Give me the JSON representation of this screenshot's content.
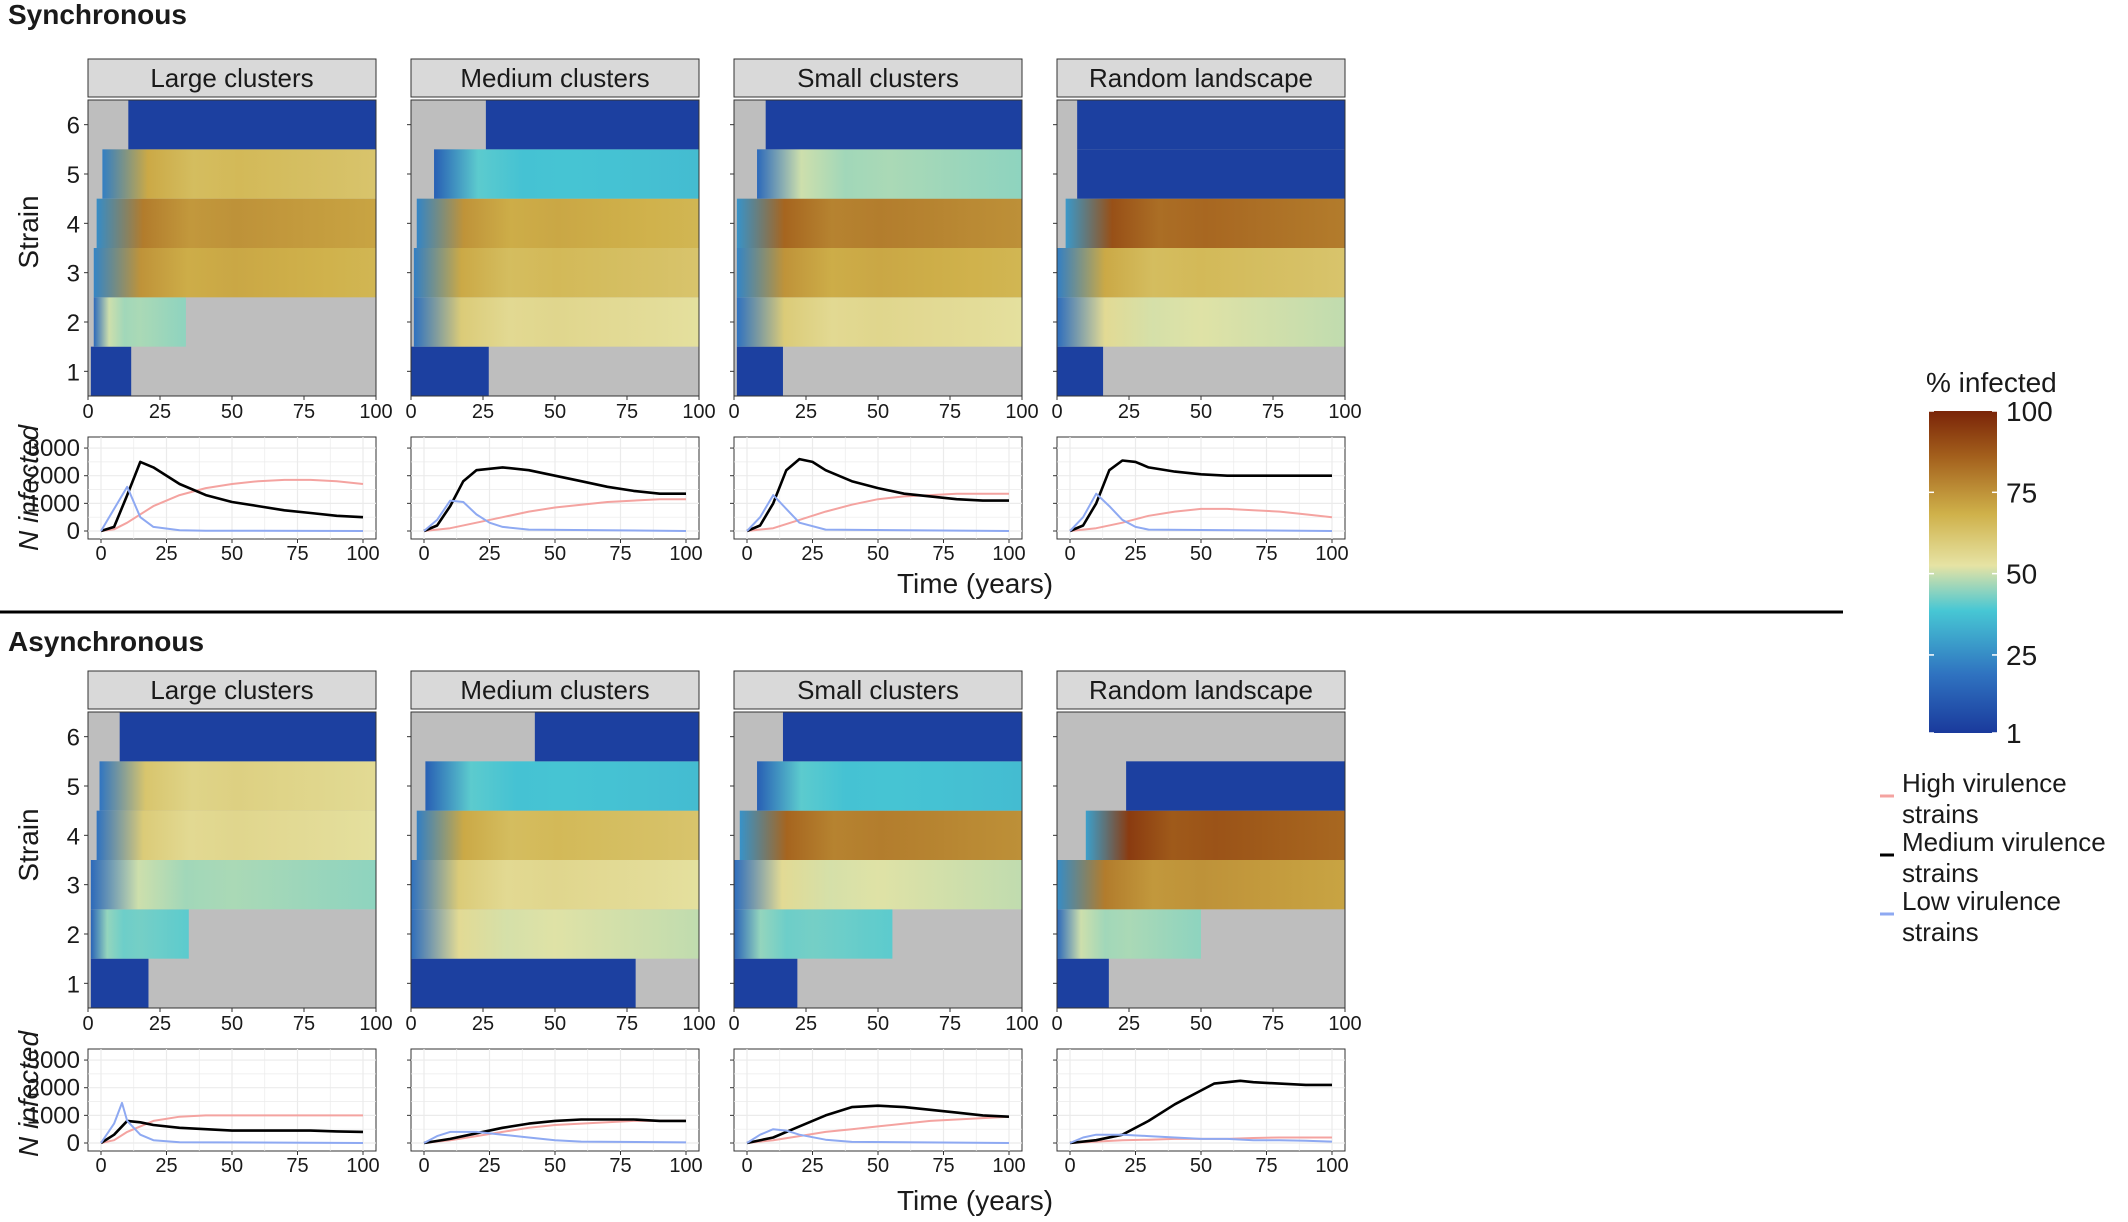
{
  "sections": [
    {
      "title": "Synchronous",
      "heatmap_facets": [
        "Large clusters",
        "Medium clusters",
        "Small clusters",
        "Random landscape"
      ]
    },
    {
      "title": "Asynchronous",
      "heatmap_facets": [
        "Large clusters",
        "Medium clusters",
        "Small clusters",
        "Random landscape"
      ]
    }
  ],
  "axes": {
    "heatmap_y_label": "Strain",
    "line_y_label": "N infected",
    "x_label": "Time (years)",
    "heatmap_y_ticks": [
      "1",
      "2",
      "3",
      "4",
      "5",
      "6"
    ],
    "heatmap_x_ticks": [
      "0",
      "25",
      "50",
      "75",
      "100"
    ],
    "line_x_ticks": [
      "0",
      "25",
      "50",
      "75",
      "100"
    ],
    "line_y_ticks": [
      "0",
      "1000",
      "2000",
      "3000"
    ]
  },
  "colorbar": {
    "title": "% infected",
    "ticks": [
      "1",
      "25",
      "50",
      "75",
      "100"
    ],
    "stops": [
      "#1a3a9c",
      "#2f72c0",
      "#47c7d4",
      "#e6e3a4",
      "#cfb14a",
      "#a35f1c",
      "#7a2408"
    ]
  },
  "legend": [
    {
      "label_line1": "High virulence",
      "label_line2": "strains",
      "color": "#f4a3a0"
    },
    {
      "label_line1": "Medium virulence",
      "label_line2": "strains",
      "color": "#000000"
    },
    {
      "label_line1": "Low virulence",
      "label_line2": "strains",
      "color": "#8ea9f2"
    }
  ],
  "chart_data": [
    {
      "section": "Synchronous",
      "facet": "Large clusters",
      "type": "heatmap+line",
      "strain_start_years": {
        "1": 1,
        "2": 2,
        "3": 2,
        "4": 3,
        "5": 5,
        "6": 14
      },
      "strain_end_years": {
        "1": 15,
        "2": 34,
        "3": 100,
        "4": 100,
        "5": 100,
        "6": 100
      },
      "strain_peak_pct": {
        "1": 5,
        "2": 50,
        "3": 75,
        "4": 80,
        "5": 70,
        "6": 2
      },
      "series": [
        {
          "name": "High virulence strains",
          "x": [
            0,
            5,
            10,
            20,
            30,
            40,
            50,
            60,
            70,
            80,
            90,
            100
          ],
          "y": [
            0,
            60,
            300,
            900,
            1300,
            1550,
            1700,
            1800,
            1850,
            1850,
            1800,
            1700
          ]
        },
        {
          "name": "Medium virulence strains",
          "x": [
            0,
            5,
            10,
            15,
            20,
            30,
            40,
            50,
            60,
            70,
            80,
            90,
            100
          ],
          "y": [
            0,
            150,
            1300,
            2500,
            2300,
            1700,
            1300,
            1050,
            900,
            750,
            650,
            550,
            500
          ]
        },
        {
          "name": "Low virulence strains",
          "x": [
            0,
            5,
            10,
            15,
            20,
            30,
            40,
            100
          ],
          "y": [
            0,
            800,
            1600,
            500,
            150,
            30,
            10,
            0
          ]
        }
      ]
    },
    {
      "section": "Synchronous",
      "facet": "Medium clusters",
      "type": "heatmap+line",
      "strain_start_years": {
        "1": 0,
        "2": 1,
        "3": 1,
        "4": 2,
        "5": 8,
        "6": 26
      },
      "strain_end_years": {
        "1": 27,
        "2": 100,
        "3": 100,
        "4": 100,
        "5": 100,
        "6": 100
      },
      "strain_peak_pct": {
        "1": 3,
        "2": 60,
        "3": 70,
        "4": 75,
        "5": 40,
        "6": 2
      },
      "series": [
        {
          "name": "High virulence strains",
          "x": [
            0,
            10,
            20,
            30,
            40,
            50,
            60,
            70,
            80,
            90,
            100
          ],
          "y": [
            0,
            100,
            300,
            500,
            700,
            850,
            950,
            1050,
            1100,
            1150,
            1150
          ]
        },
        {
          "name": "Medium virulence strains",
          "x": [
            0,
            5,
            10,
            15,
            20,
            30,
            40,
            50,
            60,
            70,
            80,
            90,
            100
          ],
          "y": [
            0,
            200,
            900,
            1800,
            2200,
            2300,
            2200,
            2000,
            1800,
            1600,
            1450,
            1350,
            1350
          ]
        },
        {
          "name": "Low virulence strains",
          "x": [
            0,
            5,
            10,
            15,
            20,
            25,
            30,
            40,
            100
          ],
          "y": [
            0,
            400,
            1100,
            1050,
            600,
            300,
            150,
            50,
            0
          ]
        }
      ]
    },
    {
      "section": "Synchronous",
      "facet": "Small clusters",
      "type": "heatmap+line",
      "strain_start_years": {
        "1": 1,
        "2": 1,
        "3": 1,
        "4": 1,
        "5": 8,
        "6": 11
      },
      "strain_end_years": {
        "1": 17,
        "2": 100,
        "3": 100,
        "4": 100,
        "5": 100,
        "6": 100
      },
      "strain_peak_pct": {
        "1": 3,
        "2": 60,
        "3": 75,
        "4": 85,
        "5": 50,
        "6": 2
      },
      "series": [
        {
          "name": "High virulence strains",
          "x": [
            0,
            10,
            20,
            30,
            40,
            50,
            60,
            70,
            80,
            90,
            100
          ],
          "y": [
            0,
            100,
            400,
            700,
            950,
            1150,
            1250,
            1300,
            1350,
            1350,
            1350
          ]
        },
        {
          "name": "Medium virulence strains",
          "x": [
            0,
            5,
            10,
            15,
            20,
            25,
            30,
            40,
            50,
            60,
            70,
            80,
            90,
            100
          ],
          "y": [
            0,
            200,
            1000,
            2200,
            2600,
            2500,
            2200,
            1800,
            1550,
            1350,
            1250,
            1150,
            1100,
            1100
          ]
        },
        {
          "name": "Low virulence strains",
          "x": [
            0,
            5,
            10,
            15,
            20,
            30,
            100
          ],
          "y": [
            0,
            500,
            1300,
            800,
            300,
            50,
            0
          ]
        }
      ]
    },
    {
      "section": "Synchronous",
      "facet": "Random landscape",
      "type": "heatmap+line",
      "strain_start_years": {
        "1": 0,
        "2": 0,
        "3": 0,
        "4": 3,
        "5": 7,
        "6": 7
      },
      "strain_end_years": {
        "1": 16,
        "2": 100,
        "3": 100,
        "4": 100,
        "5": 100,
        "6": 100
      },
      "strain_peak_pct": {
        "1": 3,
        "2": 55,
        "3": 70,
        "4": 90,
        "5": 5,
        "6": 2
      },
      "series": [
        {
          "name": "High virulence strains",
          "x": [
            0,
            10,
            20,
            30,
            40,
            50,
            60,
            70,
            80,
            90,
            100
          ],
          "y": [
            0,
            100,
            300,
            550,
            700,
            800,
            800,
            750,
            700,
            600,
            500
          ]
        },
        {
          "name": "Medium virulence strains",
          "x": [
            0,
            5,
            10,
            15,
            20,
            25,
            30,
            40,
            50,
            60,
            70,
            80,
            90,
            100
          ],
          "y": [
            0,
            200,
            1000,
            2200,
            2550,
            2500,
            2300,
            2150,
            2050,
            2000,
            2000,
            2000,
            2000,
            2000
          ]
        },
        {
          "name": "Low virulence strains",
          "x": [
            0,
            5,
            10,
            15,
            20,
            25,
            30,
            100
          ],
          "y": [
            0,
            500,
            1350,
            900,
            400,
            150,
            50,
            0
          ]
        }
      ]
    },
    {
      "section": "Asynchronous",
      "facet": "Large clusters",
      "type": "heatmap+line",
      "strain_start_years": {
        "1": 1,
        "2": 1,
        "3": 1,
        "4": 3,
        "5": 4,
        "6": 11
      },
      "strain_end_years": {
        "1": 21,
        "2": 35,
        "3": 100,
        "4": 100,
        "5": 100,
        "6": 100
      },
      "strain_peak_pct": {
        "1": 2,
        "2": 45,
        "3": 50,
        "4": 60,
        "5": 62,
        "6": 2
      },
      "series": [
        {
          "name": "High virulence strains",
          "x": [
            0,
            5,
            10,
            20,
            30,
            40,
            50,
            60,
            70,
            80,
            90,
            100
          ],
          "y": [
            0,
            100,
            400,
            800,
            950,
            1000,
            1000,
            1000,
            1000,
            1000,
            1000,
            1000
          ]
        },
        {
          "name": "Medium virulence strains",
          "x": [
            0,
            5,
            10,
            15,
            20,
            30,
            40,
            50,
            60,
            70,
            80,
            90,
            100
          ],
          "y": [
            0,
            300,
            800,
            750,
            650,
            550,
            500,
            450,
            450,
            450,
            450,
            420,
            400
          ]
        },
        {
          "name": "Low virulence strains",
          "x": [
            0,
            5,
            8,
            10,
            15,
            20,
            30,
            100
          ],
          "y": [
            0,
            700,
            1450,
            800,
            300,
            100,
            30,
            0
          ]
        }
      ]
    },
    {
      "section": "Asynchronous",
      "facet": "Medium clusters",
      "type": "heatmap+line",
      "strain_start_years": {
        "1": 0,
        "2": 0,
        "3": 0,
        "4": 2,
        "5": 5,
        "6": 43
      },
      "strain_end_years": {
        "1": 78,
        "2": 100,
        "3": 100,
        "4": 100,
        "5": 100,
        "6": 100
      },
      "strain_peak_pct": {
        "1": 2,
        "2": 55,
        "3": 60,
        "4": 70,
        "5": 40,
        "6": 2
      },
      "series": [
        {
          "name": "High virulence strains",
          "x": [
            0,
            10,
            20,
            30,
            40,
            50,
            60,
            70,
            80,
            90,
            100
          ],
          "y": [
            0,
            100,
            250,
            400,
            550,
            650,
            700,
            750,
            800,
            800,
            800
          ]
        },
        {
          "name": "Medium virulence strains",
          "x": [
            0,
            10,
            20,
            30,
            40,
            50,
            60,
            70,
            80,
            90,
            100
          ],
          "y": [
            0,
            150,
            350,
            550,
            700,
            800,
            850,
            850,
            850,
            800,
            800
          ]
        },
        {
          "name": "Low virulence strains",
          "x": [
            0,
            5,
            10,
            20,
            30,
            40,
            50,
            60,
            100
          ],
          "y": [
            0,
            250,
            400,
            400,
            300,
            200,
            100,
            50,
            20
          ]
        }
      ]
    },
    {
      "section": "Asynchronous",
      "facet": "Small clusters",
      "type": "heatmap+line",
      "strain_start_years": {
        "1": 0,
        "2": 0,
        "3": 0,
        "4": 2,
        "5": 8,
        "6": 17
      },
      "strain_end_years": {
        "1": 22,
        "2": 55,
        "3": 100,
        "4": 100,
        "5": 100,
        "6": 100
      },
      "strain_peak_pct": {
        "1": 2,
        "2": 45,
        "3": 55,
        "4": 85,
        "5": 40,
        "6": 2
      },
      "series": [
        {
          "name": "High virulence strains",
          "x": [
            0,
            10,
            20,
            30,
            40,
            50,
            60,
            70,
            80,
            90,
            100
          ],
          "y": [
            0,
            100,
            250,
            400,
            500,
            600,
            700,
            800,
            850,
            900,
            950
          ]
        },
        {
          "name": "Medium virulence strains",
          "x": [
            0,
            10,
            20,
            30,
            40,
            50,
            60,
            70,
            80,
            90,
            100
          ],
          "y": [
            0,
            200,
            600,
            1000,
            1300,
            1350,
            1300,
            1200,
            1100,
            1000,
            950
          ]
        },
        {
          "name": "Low virulence strains",
          "x": [
            0,
            5,
            10,
            15,
            20,
            30,
            40,
            100
          ],
          "y": [
            0,
            300,
            500,
            450,
            300,
            120,
            40,
            0
          ]
        }
      ]
    },
    {
      "section": "Asynchronous",
      "facet": "Random landscape",
      "type": "heatmap+line",
      "strain_start_years": {
        "1": 0,
        "2": 0,
        "3": 0,
        "4": 10,
        "5": 24,
        "6": 101
      },
      "strain_end_years": {
        "1": 18,
        "2": 50,
        "3": 100,
        "4": 100,
        "5": 100,
        "6": 100
      },
      "strain_peak_pct": {
        "1": 2,
        "2": 50,
        "3": 80,
        "4": 95,
        "5": 3,
        "6": 0
      },
      "series": [
        {
          "name": "High virulence strains",
          "x": [
            0,
            10,
            20,
            30,
            40,
            50,
            60,
            70,
            80,
            90,
            100
          ],
          "y": [
            0,
            50,
            100,
            120,
            150,
            150,
            150,
            180,
            200,
            200,
            200
          ]
        },
        {
          "name": "Medium virulence strains",
          "x": [
            0,
            10,
            20,
            30,
            40,
            50,
            55,
            60,
            65,
            70,
            80,
            90,
            100
          ],
          "y": [
            0,
            100,
            300,
            800,
            1400,
            1900,
            2150,
            2200,
            2250,
            2200,
            2150,
            2100,
            2100
          ]
        },
        {
          "name": "Low virulence strains",
          "x": [
            0,
            5,
            10,
            20,
            30,
            40,
            50,
            60,
            70,
            80,
            90,
            100
          ],
          "y": [
            0,
            200,
            300,
            300,
            250,
            200,
            150,
            150,
            100,
            100,
            80,
            50
          ]
        }
      ]
    }
  ]
}
